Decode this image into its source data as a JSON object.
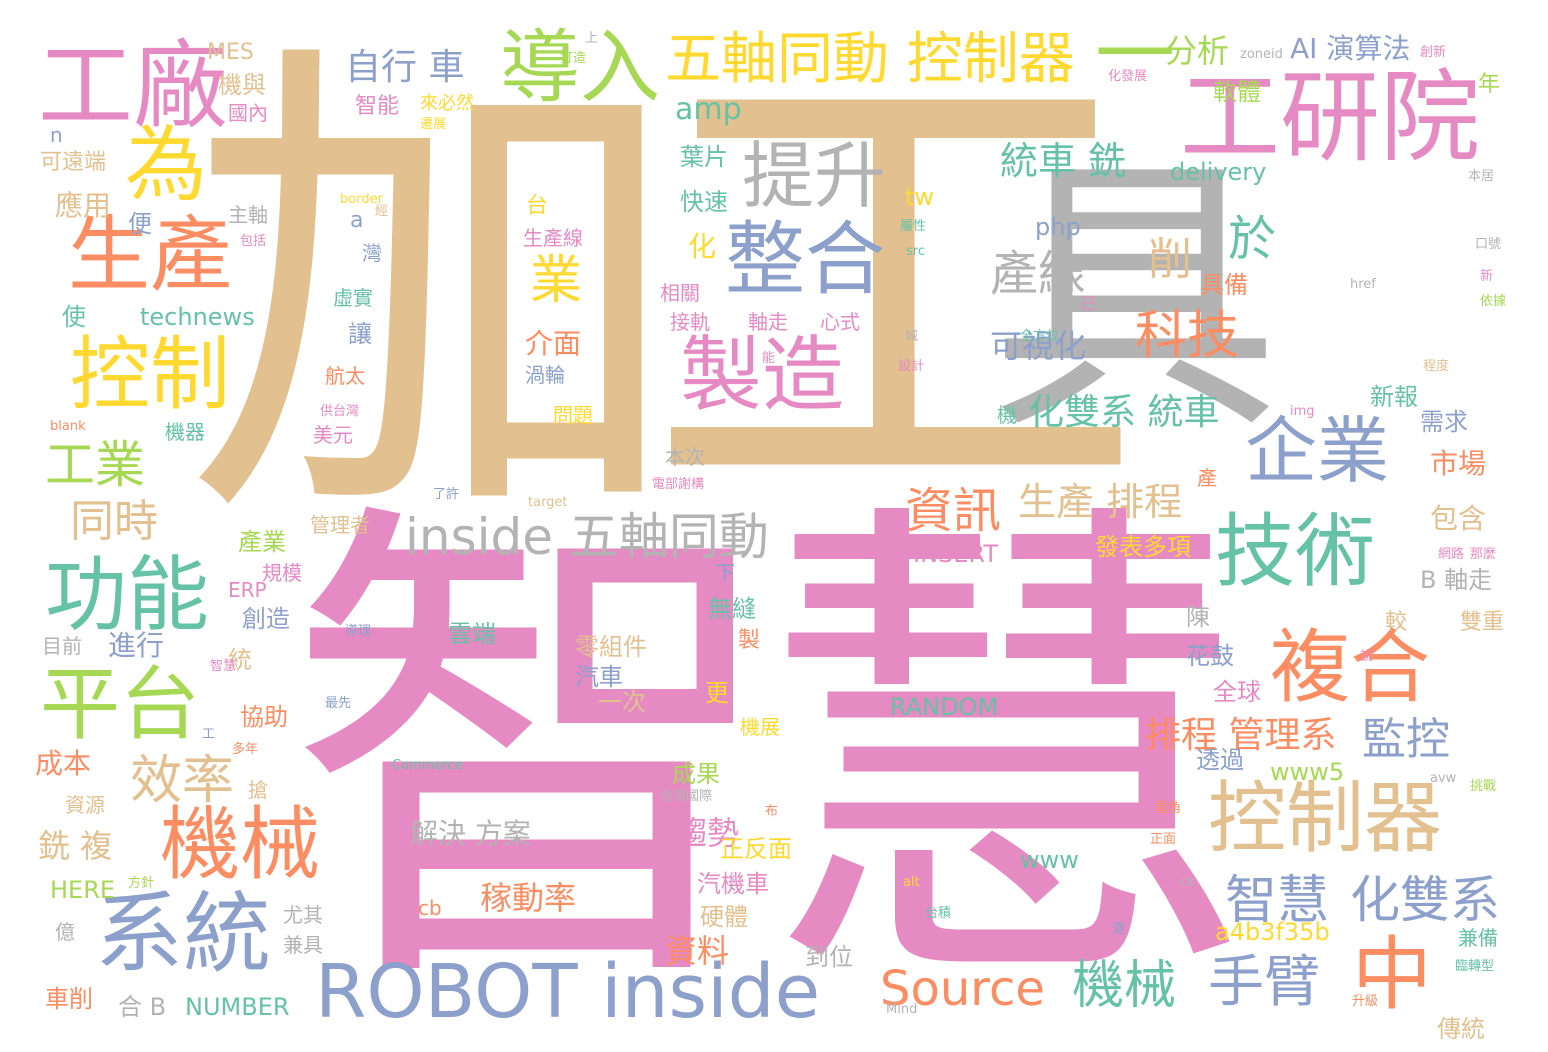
{
  "palette": {
    "tan": "#e2c08f",
    "pink": "#e68ac3",
    "gray": "#b3b3b3",
    "blue": "#8da0cb",
    "green": "#66c2a5",
    "orange": "#fc8d62",
    "yellow": "#ffd92f",
    "lime": "#a6d854"
  },
  "words": [
    {
      "id": "w0",
      "text": "加工",
      "color": "tan"
    },
    {
      "id": "w1",
      "text": "智慧",
      "color": "pink"
    },
    {
      "id": "w2",
      "text": "具",
      "color": "gray"
    },
    {
      "id": "w3",
      "text": "工研院",
      "color": "pink"
    },
    {
      "id": "w4",
      "text": "工廠",
      "color": "pink"
    },
    {
      "id": "w5",
      "text": "導入",
      "color": "lime"
    },
    {
      "id": "w6",
      "text": "五軸同動 控制器",
      "color": "yellow"
    },
    {
      "id": "w7",
      "text": "一",
      "color": "lime"
    },
    {
      "id": "w8",
      "text": "為",
      "color": "yellow"
    },
    {
      "id": "w9",
      "text": "生產",
      "color": "orange"
    },
    {
      "id": "w10",
      "text": "控制",
      "color": "yellow"
    },
    {
      "id": "w11",
      "text": "提升",
      "color": "gray"
    },
    {
      "id": "w12",
      "text": "整合",
      "color": "blue"
    },
    {
      "id": "w13",
      "text": "製造",
      "color": "pink"
    },
    {
      "id": "w14",
      "text": "企業",
      "color": "blue"
    },
    {
      "id": "w15",
      "text": "技術",
      "color": "green"
    },
    {
      "id": "w16",
      "text": "功能",
      "color": "green"
    },
    {
      "id": "w17",
      "text": "平台",
      "color": "lime"
    },
    {
      "id": "w18",
      "text": "機械",
      "color": "orange"
    },
    {
      "id": "w19",
      "text": "系統",
      "color": "blue"
    },
    {
      "id": "w20",
      "text": "ROBOT inside",
      "color": "blue"
    },
    {
      "id": "w21",
      "text": "inside 五軸同動",
      "color": "gray"
    },
    {
      "id": "w22",
      "text": "複合",
      "color": "orange"
    },
    {
      "id": "w23",
      "text": "中",
      "color": "orange"
    },
    {
      "id": "w24",
      "text": "控制器",
      "color": "tan"
    },
    {
      "id": "w25",
      "text": "Source",
      "color": "orange"
    },
    {
      "id": "w26",
      "text": "機械",
      "color": "green"
    },
    {
      "id": "w27",
      "text": "手臂",
      "color": "blue"
    },
    {
      "id": "w28",
      "text": "智慧",
      "color": "blue"
    },
    {
      "id": "w29",
      "text": "化雙系",
      "color": "blue"
    },
    {
      "id": "w30",
      "text": "效率",
      "color": "tan"
    },
    {
      "id": "w31",
      "text": "資訊",
      "color": "orange"
    },
    {
      "id": "w32",
      "text": "科技",
      "color": "orange"
    },
    {
      "id": "w33",
      "text": "產線",
      "color": "gray"
    },
    {
      "id": "w34",
      "text": "業",
      "color": "yellow"
    },
    {
      "id": "w35",
      "text": "自行 車",
      "color": "blue"
    },
    {
      "id": "w36",
      "text": "分析",
      "color": "lime"
    },
    {
      "id": "w37",
      "text": "AI 演算法",
      "color": "blue"
    },
    {
      "id": "w38",
      "text": "工業",
      "color": "lime"
    },
    {
      "id": "w39",
      "text": "同時",
      "color": "tan"
    },
    {
      "id": "w40",
      "text": "統車 銑",
      "color": "green"
    },
    {
      "id": "w41",
      "text": "於",
      "color": "green"
    },
    {
      "id": "w42",
      "text": "削",
      "color": "tan"
    },
    {
      "id": "w43",
      "text": "生產 排程",
      "color": "tan"
    },
    {
      "id": "w44",
      "text": "化雙系 統車",
      "color": "green"
    },
    {
      "id": "w45",
      "text": "排程 管理系",
      "color": "orange"
    },
    {
      "id": "w46",
      "text": "監控",
      "color": "blue"
    },
    {
      "id": "w47",
      "text": "可視化",
      "color": "blue"
    },
    {
      "id": "w48",
      "text": "amp",
      "color": "green"
    },
    {
      "id": "w49",
      "text": "軟體",
      "color": "lime"
    },
    {
      "id": "w50",
      "text": "葉片",
      "color": "green"
    },
    {
      "id": "w51",
      "text": "快速",
      "color": "green"
    },
    {
      "id": "w52",
      "text": "delivery",
      "color": "green"
    },
    {
      "id": "w53",
      "text": "technews",
      "color": "green"
    },
    {
      "id": "w54",
      "text": "php",
      "color": "blue"
    },
    {
      "id": "w55",
      "text": "tw",
      "color": "yellow"
    },
    {
      "id": "w56",
      "text": "市場",
      "color": "orange"
    },
    {
      "id": "w57",
      "text": "需求",
      "color": "blue"
    },
    {
      "id": "w58",
      "text": "新報",
      "color": "green"
    },
    {
      "id": "w59",
      "text": "包含",
      "color": "tan"
    },
    {
      "id": "w60",
      "text": "INSERT",
      "color": "pink"
    },
    {
      "id": "w61",
      "text": "發表多項",
      "color": "yellow"
    },
    {
      "id": "w62",
      "text": "RANDOM",
      "color": "green"
    },
    {
      "id": "w63",
      "text": "解決 方案",
      "color": "gray"
    },
    {
      "id": "w64",
      "text": "趨勢",
      "color": "pink"
    },
    {
      "id": "w65",
      "text": "稼動率",
      "color": "orange"
    },
    {
      "id": "w66",
      "text": "正反面",
      "color": "yellow"
    },
    {
      "id": "w67",
      "text": "汽機車",
      "color": "pink"
    },
    {
      "id": "w68",
      "text": "硬體",
      "color": "tan"
    },
    {
      "id": "w69",
      "text": "資料",
      "color": "orange"
    },
    {
      "id": "w70",
      "text": "到位",
      "color": "gray"
    },
    {
      "id": "w71",
      "text": "NUMBER",
      "color": "green"
    },
    {
      "id": "w72",
      "text": "HERE",
      "color": "lime"
    },
    {
      "id": "w73",
      "text": "a4b3f35b",
      "color": "yellow"
    },
    {
      "id": "w74",
      "text": "www",
      "color": "green"
    },
    {
      "id": "w75",
      "text": "www5",
      "color": "lime"
    },
    {
      "id": "w76",
      "text": "傳統",
      "color": "tan"
    },
    {
      "id": "w77",
      "text": "兼備",
      "color": "green"
    },
    {
      "id": "w78",
      "text": "B 軸走",
      "color": "gray"
    },
    {
      "id": "w79",
      "text": "雙重",
      "color": "tan"
    },
    {
      "id": "w80",
      "text": "較",
      "color": "tan"
    },
    {
      "id": "w81",
      "text": "全球",
      "color": "pink"
    },
    {
      "id": "w82",
      "text": "花鼓",
      "color": "blue"
    },
    {
      "id": "w83",
      "text": "陳",
      "color": "gray"
    },
    {
      "id": "w84",
      "text": "透過",
      "color": "blue"
    },
    {
      "id": "w85",
      "text": "零組件",
      "color": "tan"
    },
    {
      "id": "w86",
      "text": "汽車",
      "color": "blue"
    },
    {
      "id": "w87",
      "text": "一次",
      "color": "tan"
    },
    {
      "id": "w88",
      "text": "雲端",
      "color": "green"
    },
    {
      "id": "w89",
      "text": "無縫",
      "color": "green"
    },
    {
      "id": "w90",
      "text": "成果",
      "color": "lime"
    },
    {
      "id": "w91",
      "text": "機展",
      "color": "yellow"
    },
    {
      "id": "w92",
      "text": "更",
      "color": "yellow"
    },
    {
      "id": "w93",
      "text": "本次",
      "color": "gray"
    },
    {
      "id": "w94",
      "text": "管理者",
      "color": "tan"
    },
    {
      "id": "w95",
      "text": "產業",
      "color": "lime"
    },
    {
      "id": "w96",
      "text": "規模",
      "color": "pink"
    },
    {
      "id": "w97",
      "text": "ERP",
      "color": "pink"
    },
    {
      "id": "w98",
      "text": "創造",
      "color": "blue"
    },
    {
      "id": "w99",
      "text": "進行",
      "color": "blue"
    },
    {
      "id": "w100",
      "text": "目前",
      "color": "gray"
    },
    {
      "id": "w101",
      "text": "統",
      "color": "tan"
    },
    {
      "id": "w102",
      "text": "協助",
      "color": "orange"
    },
    {
      "id": "w103",
      "text": "成本",
      "color": "orange"
    },
    {
      "id": "w104",
      "text": "資源",
      "color": "tan"
    },
    {
      "id": "w105",
      "text": "銑 複",
      "color": "tan"
    },
    {
      "id": "w106",
      "text": "尤其",
      "color": "gray"
    },
    {
      "id": "w107",
      "text": "兼具",
      "color": "gray"
    },
    {
      "id": "w108",
      "text": "億",
      "color": "gray"
    },
    {
      "id": "w109",
      "text": "車削",
      "color": "orange"
    },
    {
      "id": "w110",
      "text": "合 B",
      "color": "gray"
    },
    {
      "id": "w111",
      "text": "cb",
      "color": "orange"
    },
    {
      "id": "w112",
      "text": "MES",
      "color": "tan"
    },
    {
      "id": "w113",
      "text": "機與",
      "color": "tan"
    },
    {
      "id": "w114",
      "text": "國內",
      "color": "pink"
    },
    {
      "id": "w115",
      "text": "智能",
      "color": "pink"
    },
    {
      "id": "w116",
      "text": "可遠端",
      "color": "tan"
    },
    {
      "id": "w117",
      "text": "應用",
      "color": "tan"
    },
    {
      "id": "w118",
      "text": "主軸",
      "color": "gray"
    },
    {
      "id": "w119",
      "text": "使",
      "color": "green"
    },
    {
      "id": "w120",
      "text": "便",
      "color": "blue"
    },
    {
      "id": "w121",
      "text": "虛實",
      "color": "green"
    },
    {
      "id": "w122",
      "text": "讓",
      "color": "blue"
    },
    {
      "id": "w123",
      "text": "航太",
      "color": "orange"
    },
    {
      "id": "w124",
      "text": "美元",
      "color": "pink"
    },
    {
      "id": "w125",
      "text": "機器",
      "color": "green"
    },
    {
      "id": "w126",
      "text": "生產線",
      "color": "pink"
    },
    {
      "id": "w127",
      "text": "介面",
      "color": "orange"
    },
    {
      "id": "w128",
      "text": "渦輪",
      "color": "blue"
    },
    {
      "id": "w129",
      "text": "問題",
      "color": "yellow"
    },
    {
      "id": "w130",
      "text": "相關",
      "color": "pink"
    },
    {
      "id": "w131",
      "text": "接軌",
      "color": "pink"
    },
    {
      "id": "w132",
      "text": "軸走",
      "color": "pink"
    },
    {
      "id": "w133",
      "text": "心式",
      "color": "pink"
    },
    {
      "id": "w134",
      "text": "化",
      "color": "yellow"
    },
    {
      "id": "w135",
      "text": "具備",
      "color": "orange"
    },
    {
      "id": "w136",
      "text": "年",
      "color": "lime"
    },
    {
      "id": "w137",
      "text": "n",
      "color": "blue"
    },
    {
      "id": "w138",
      "text": "a",
      "color": "blue"
    },
    {
      "id": "w139",
      "text": "台",
      "color": "yellow"
    },
    {
      "id": "w140",
      "text": "灣",
      "color": "blue"
    },
    {
      "id": "w141",
      "text": "border",
      "color": "yellow"
    },
    {
      "id": "w142",
      "text": "zoneid",
      "color": "gray"
    },
    {
      "id": "w143",
      "text": "href",
      "color": "gray"
    },
    {
      "id": "w144",
      "text": "src",
      "color": "green"
    },
    {
      "id": "w145",
      "text": "img",
      "color": "pink"
    },
    {
      "id": "w146",
      "text": "blank",
      "color": "orange"
    },
    {
      "id": "w147",
      "text": "target",
      "color": "tan"
    },
    {
      "id": "w148",
      "text": "alt",
      "color": "yellow"
    },
    {
      "id": "w149",
      "text": "Commerce",
      "color": "green"
    },
    {
      "id": "w150",
      "text": "Mind",
      "color": "gray"
    },
    {
      "id": "w151",
      "text": "ck",
      "color": "gray"
    },
    {
      "id": "w152",
      "text": "avw",
      "color": "gray"
    },
    {
      "id": "w153",
      "text": "了許",
      "color": "blue"
    },
    {
      "id": "w154",
      "text": "電部謝構",
      "color": "pink"
    },
    {
      "id": "w155",
      "text": "化發展",
      "color": "pink"
    },
    {
      "id": "w156",
      "text": "來必然",
      "color": "yellow"
    },
    {
      "id": "w157",
      "text": "遷展",
      "color": "yellow"
    },
    {
      "id": "w158",
      "text": "本居",
      "color": "gray"
    },
    {
      "id": "w159",
      "text": "口號",
      "color": "gray"
    },
    {
      "id": "w160",
      "text": "依據",
      "color": "lime"
    },
    {
      "id": "w161",
      "text": "程度",
      "color": "tan"
    },
    {
      "id": "w162",
      "text": "挑戰",
      "color": "lime"
    },
    {
      "id": "w163",
      "text": "機",
      "color": "green"
    },
    {
      "id": "w164",
      "text": "產",
      "color": "orange"
    },
    {
      "id": "w165",
      "text": "製",
      "color": "orange"
    },
    {
      "id": "w166",
      "text": "下",
      "color": "blue"
    },
    {
      "id": "w167",
      "text": "隻",
      "color": "pink"
    },
    {
      "id": "w168",
      "text": "全方位",
      "color": "green"
    },
    {
      "id": "w169",
      "text": "已",
      "color": "pink"
    },
    {
      "id": "w170",
      "text": "正面",
      "color": "orange"
    },
    {
      "id": "w171",
      "text": "搶",
      "color": "tan"
    },
    {
      "id": "w172",
      "text": "多年",
      "color": "orange"
    },
    {
      "id": "w173",
      "text": "最先",
      "color": "blue"
    },
    {
      "id": "w174",
      "text": "工",
      "color": "blue"
    },
    {
      "id": "w175",
      "text": "台積",
      "color": "green"
    },
    {
      "id": "w176",
      "text": "運",
      "color": "blue"
    },
    {
      "id": "w177",
      "text": "臨轉型",
      "color": "green"
    },
    {
      "id": "w178",
      "text": "升級",
      "color": "orange"
    },
    {
      "id": "w179",
      "text": "周方",
      "color": "pink"
    },
    {
      "id": "w180",
      "text": "供台灣",
      "color": "pink"
    },
    {
      "id": "w181",
      "text": "設計",
      "color": "pink"
    },
    {
      "id": "w182",
      "text": "屬性",
      "color": "green"
    },
    {
      "id": "w183",
      "text": "包括",
      "color": "pink"
    },
    {
      "id": "w184",
      "text": "經",
      "color": "tan"
    },
    {
      "id": "w185",
      "text": "打造",
      "color": "lime"
    },
    {
      "id": "w186",
      "text": "上",
      "color": "gray"
    },
    {
      "id": "w187",
      "text": "創新",
      "color": "pink"
    },
    {
      "id": "w188",
      "text": "那麼",
      "color": "pink"
    },
    {
      "id": "w189",
      "text": "網路",
      "color": "pink"
    },
    {
      "id": "w190",
      "text": "台灣國際",
      "color": "gray"
    },
    {
      "id": "w191",
      "text": "智慧",
      "color": "pink"
    },
    {
      "id": "w192",
      "text": "導理",
      "color": "blue"
    },
    {
      "id": "w193",
      "text": "方針",
      "color": "lime"
    },
    {
      "id": "w194",
      "text": "雲角",
      "color": "orange"
    },
    {
      "id": "w195",
      "text": "能",
      "color": "pink"
    },
    {
      "id": "w196",
      "text": "進",
      "color": "pink"
    },
    {
      "id": "w197",
      "text": "城",
      "color": "gray"
    },
    {
      "id": "w198",
      "text": "布",
      "color": "orange"
    },
    {
      "id": "w199",
      "text": "新",
      "color": "pink"
    },
    {
      "id": "w200",
      "text": "說",
      "color": "pink"
    }
  ]
}
